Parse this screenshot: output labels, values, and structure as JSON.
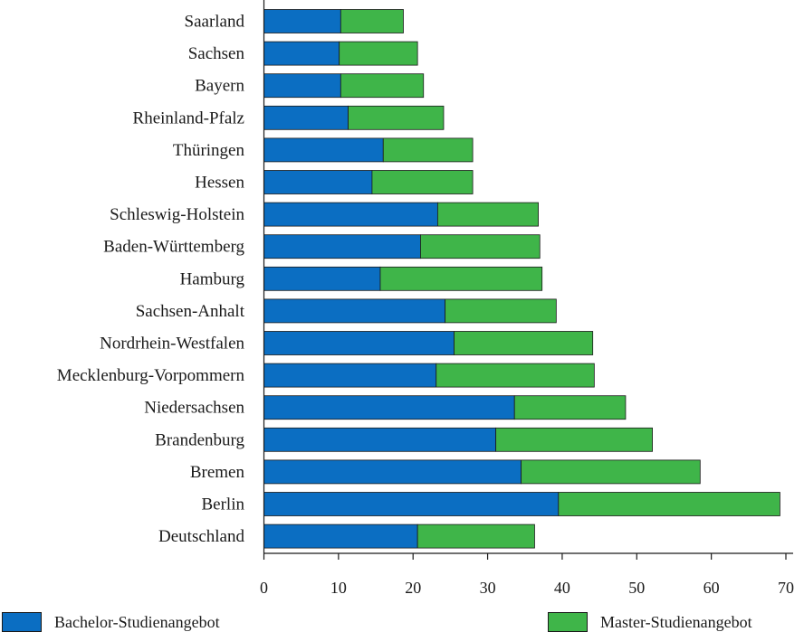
{
  "chart_data": {
    "type": "bar",
    "orientation": "horizontal",
    "stacked": true,
    "categories": [
      "Saarland",
      "Sachsen",
      "Bayern",
      "Rheinland-Pfalz",
      "Thüringen",
      "Hessen",
      "Schleswig-Holstein",
      "Baden-Württemberg",
      "Hamburg",
      "Sachsen-Anhalt",
      "Nordrhein-Westfalen",
      "Mecklenburg-Vorpommern",
      "Niedersachsen",
      "Brandenburg",
      "Bremen",
      "Berlin",
      "Deutschland"
    ],
    "series": [
      {
        "name": "Bachelor-Studienangebot",
        "color": "#0b6ec2",
        "values": [
          10.3,
          10.1,
          10.3,
          11.3,
          16.0,
          14.5,
          23.3,
          21.0,
          15.6,
          24.3,
          25.5,
          23.1,
          33.6,
          31.1,
          34.5,
          39.5,
          20.6
        ]
      },
      {
        "name": "Master-Studienangebot",
        "color": "#3fb549",
        "values": [
          8.4,
          10.5,
          11.1,
          12.8,
          12.0,
          13.5,
          13.5,
          16.0,
          21.7,
          14.9,
          18.6,
          21.2,
          14.9,
          21.0,
          24.0,
          29.7,
          15.7
        ]
      }
    ],
    "xlim": [
      0,
      70
    ],
    "x_ticks": [
      "0",
      "10",
      "20",
      "30",
      "40",
      "50",
      "60",
      "70"
    ],
    "xlabel": "",
    "ylabel": "",
    "grid": false,
    "legend_position": "bottom"
  }
}
